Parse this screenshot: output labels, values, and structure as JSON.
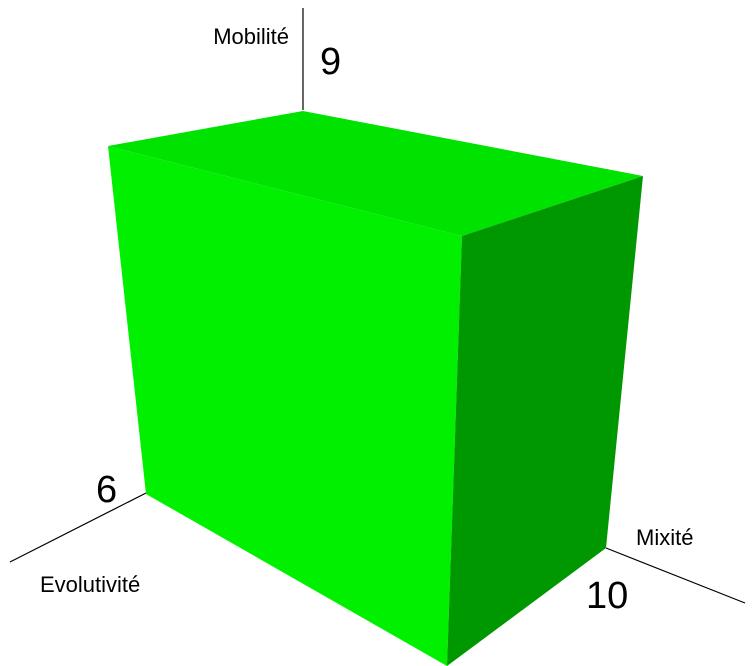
{
  "axes": {
    "vertical": {
      "label": "Mobilité",
      "value": "9"
    },
    "left": {
      "label": "Evolutivité",
      "value": "6"
    },
    "right": {
      "label": "Mixité",
      "value": "10"
    }
  },
  "colors": {
    "front_face": "#00f000",
    "top_face": "#00e200",
    "side_face": "#009800",
    "axis_line": "#000000"
  }
}
